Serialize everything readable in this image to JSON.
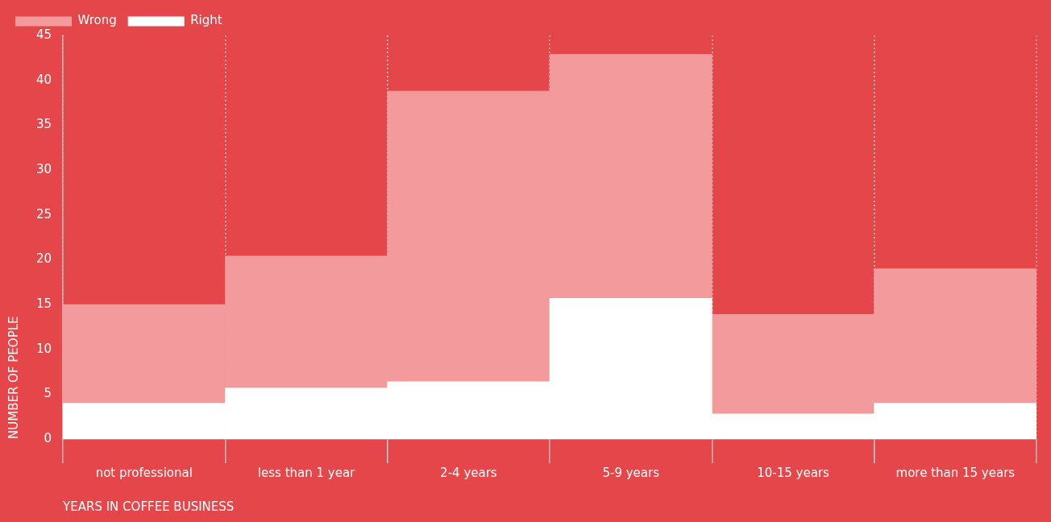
{
  "chart_data": {
    "type": "bar",
    "stacked": true,
    "xlabel": "YEARS IN COFFEE BUSINESS",
    "ylabel": "NUMBER OF PEOPLE",
    "categories": [
      "not professional",
      "less than 1 year",
      "2-4 years",
      "5-9 years",
      "10-15 years",
      "more than 15 years"
    ],
    "series": [
      {
        "name": "Right",
        "color": "#ffffff",
        "values": [
          4,
          5.7,
          6.4,
          15.7,
          2.8,
          4
        ]
      },
      {
        "name": "Wrong",
        "color": "#f29a9c",
        "values": [
          11,
          14.7,
          32.4,
          27.2,
          11.1,
          15
        ]
      }
    ],
    "ylim": [
      0,
      45
    ],
    "yticks": [
      0,
      5,
      10,
      15,
      20,
      25,
      30,
      35,
      40,
      45
    ],
    "grid": "x",
    "legend": "top left"
  }
}
